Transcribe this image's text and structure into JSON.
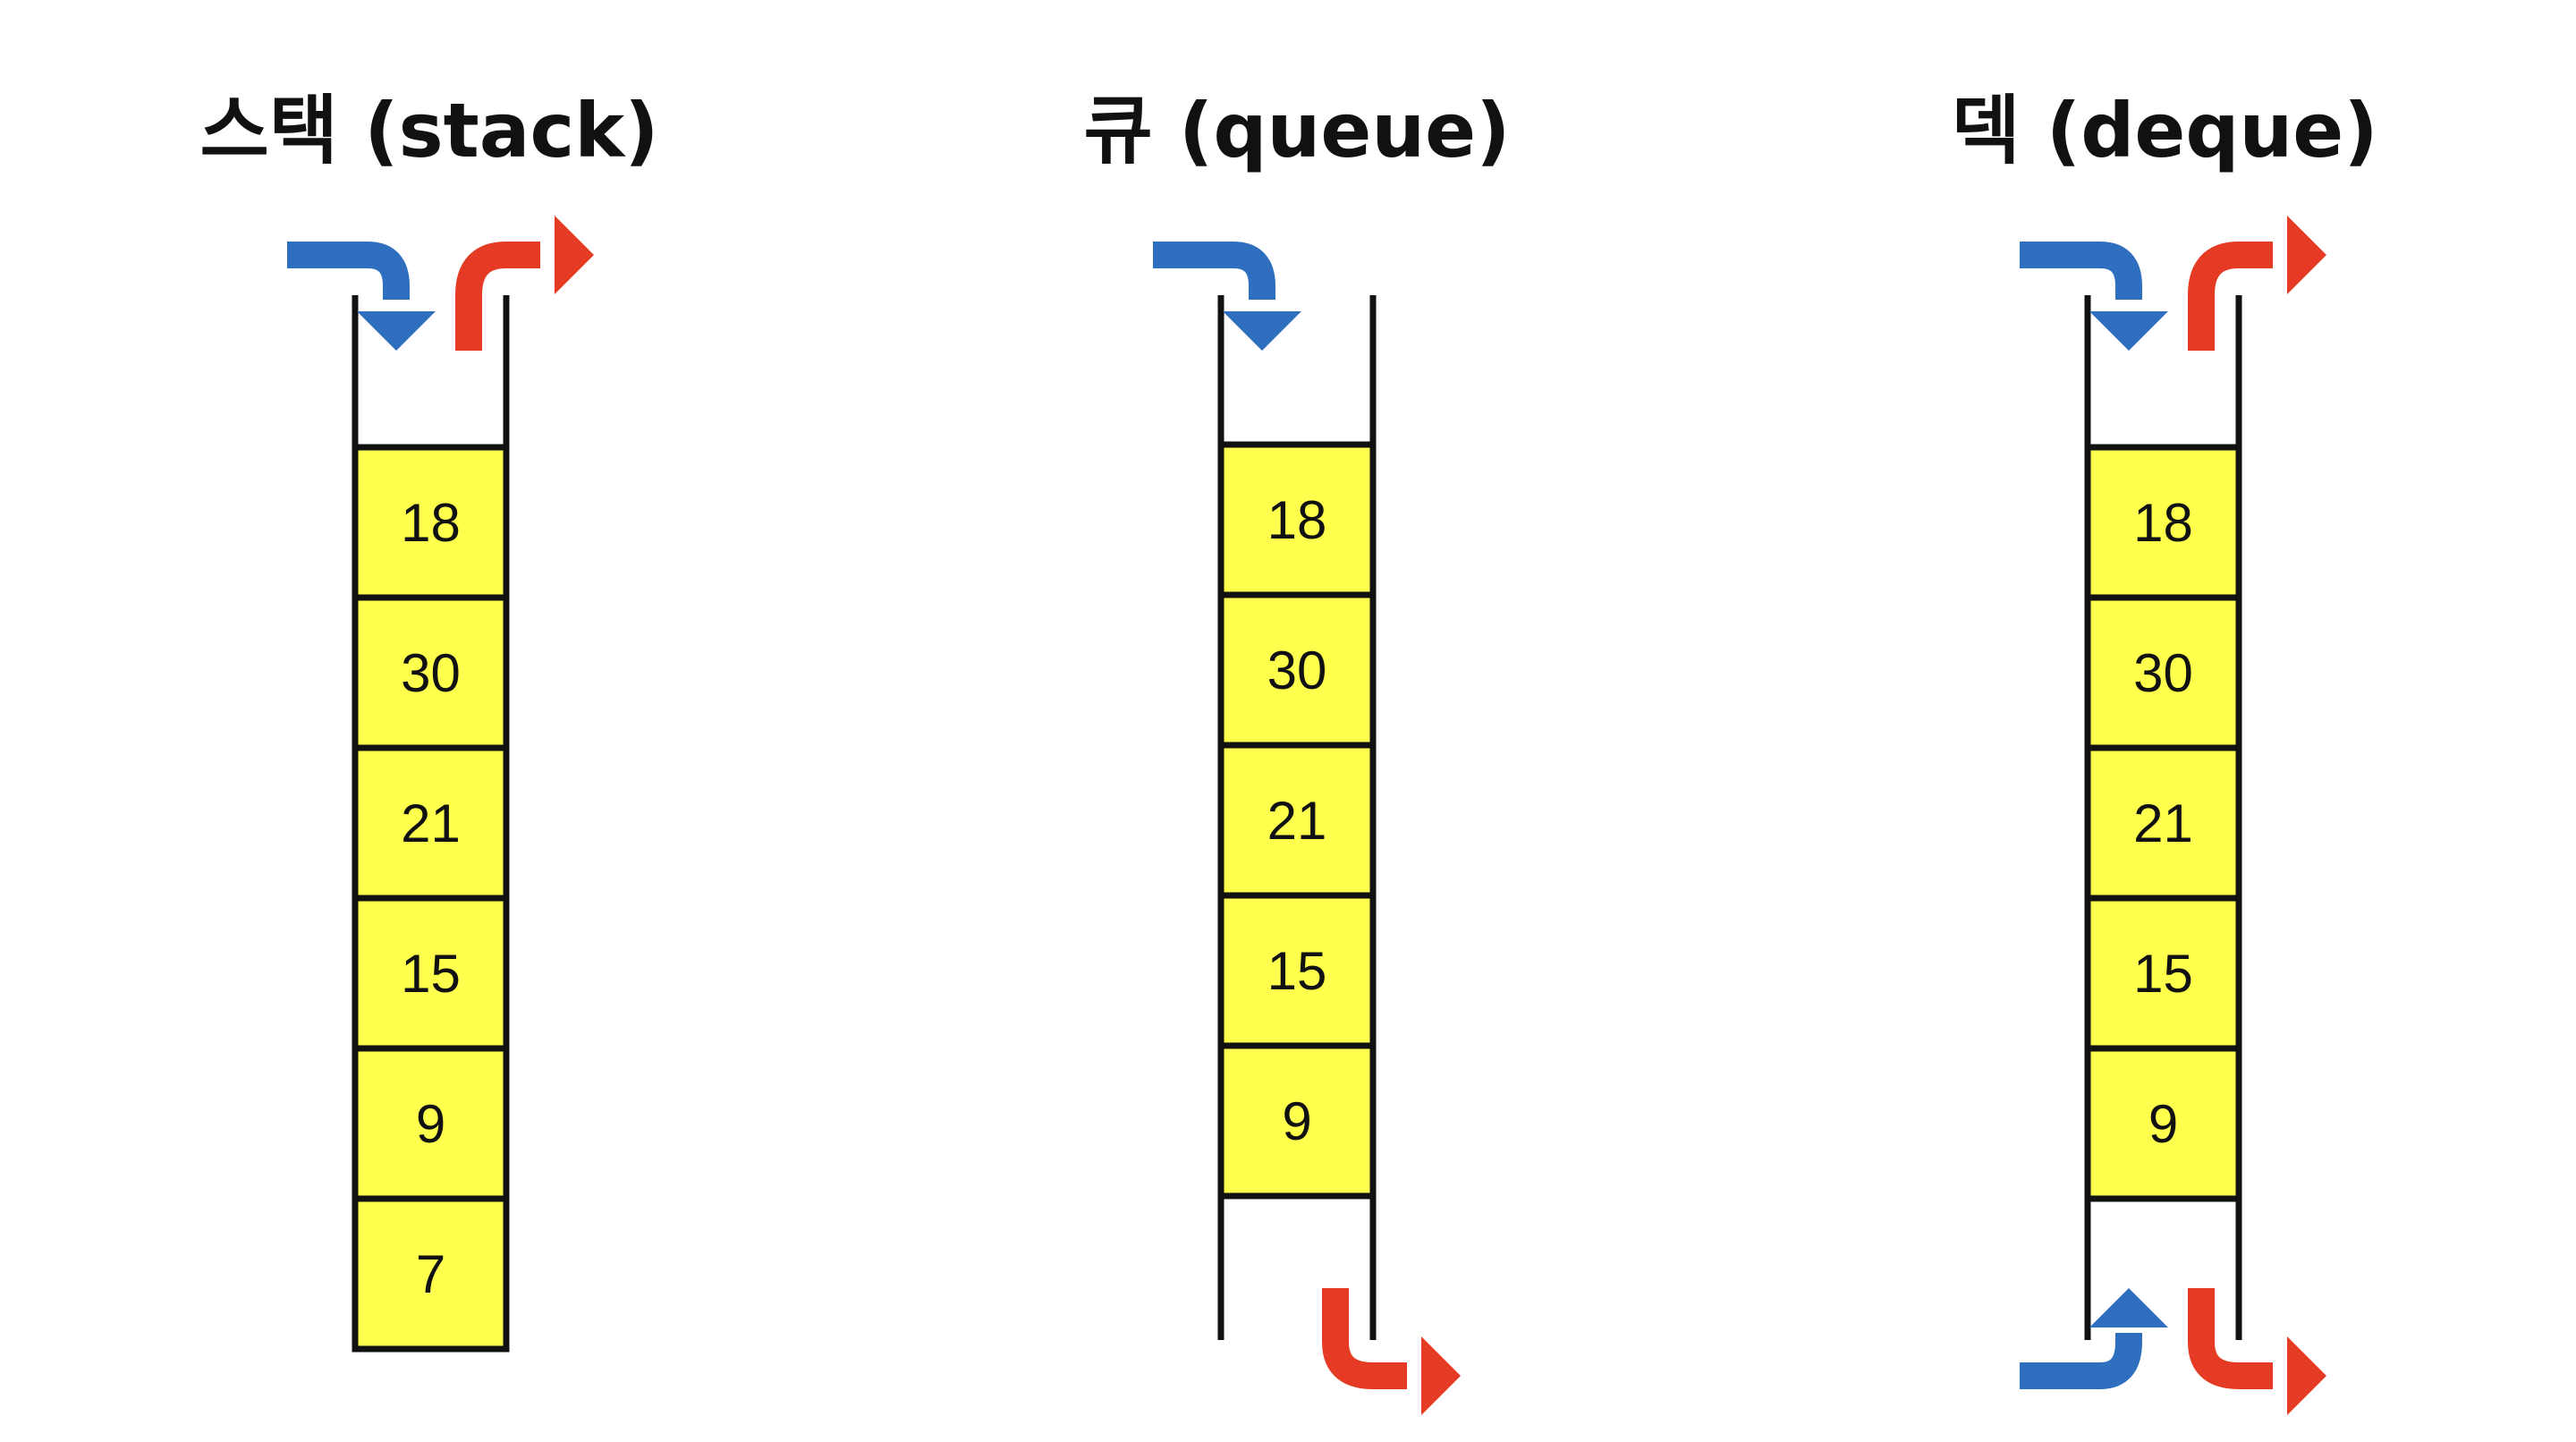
{
  "colors": {
    "cell_fill": "#ffff4d",
    "outline": "#111111",
    "push_arrow": "#2e6fc0",
    "pop_arrow": "#e53a23"
  },
  "diagrams": [
    {
      "title": "스택 (stack)",
      "values": [
        "18",
        "30",
        "21",
        "15",
        "9",
        "7"
      ],
      "push_arrows": [
        "top-right-down"
      ],
      "pop_arrows": [
        "top-up-right"
      ]
    },
    {
      "title": "큐 (queue)",
      "values": [
        "18",
        "30",
        "21",
        "15",
        "9"
      ],
      "push_arrows": [
        "top-right-down"
      ],
      "pop_arrows": [
        "bottom-down-right"
      ]
    },
    {
      "title": "덱 (deque)",
      "values": [
        "18",
        "30",
        "21",
        "15",
        "9"
      ],
      "push_arrows": [
        "top-right-down",
        "bottom-right-up"
      ],
      "pop_arrows": [
        "top-up-right",
        "bottom-down-right"
      ]
    }
  ]
}
